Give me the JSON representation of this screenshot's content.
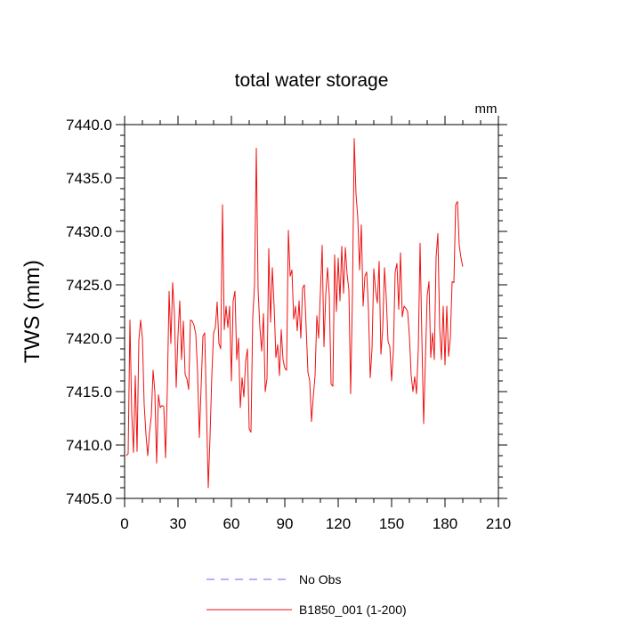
{
  "chart_data": {
    "type": "line",
    "title": "total water storage",
    "ylabel": "TWS  (mm)",
    "xlabel": "",
    "units_label": "mm",
    "xlim": [
      0,
      210
    ],
    "ylim": [
      7405.0,
      7440.0
    ],
    "x_ticks": [
      0,
      30,
      60,
      90,
      120,
      150,
      180,
      210
    ],
    "x_tick_labels": [
      "0",
      "30",
      "60",
      "90",
      "120",
      "150",
      "180",
      "210"
    ],
    "y_ticks": [
      7405.0,
      7410.0,
      7415.0,
      7420.0,
      7425.0,
      7430.0,
      7435.0,
      7440.0
    ],
    "y_tick_labels": [
      "7405.0",
      "7410.0",
      "7415.0",
      "7420.0",
      "7425.0",
      "7430.0",
      "7435.0",
      "7440.0"
    ],
    "series": [
      {
        "name": "No Obs",
        "color": "#6666ff",
        "dashed": true,
        "x": [],
        "values": []
      },
      {
        "name": "B1850_001 (1-200)",
        "color": "#ee1111",
        "dashed": false,
        "x_start": 1,
        "values": [
          7409.0,
          7409.2,
          7421.7,
          7413.0,
          7409.3,
          7416.5,
          7409.4,
          7419.8,
          7421.7,
          7420.0,
          7413.8,
          7411.0,
          7409.0,
          7411.2,
          7412.7,
          7417.0,
          7415.0,
          7408.3,
          7414.7,
          7413.5,
          7413.7,
          7413.6,
          7408.8,
          7415.2,
          7424.4,
          7419.5,
          7425.2,
          7422.3,
          7415.4,
          7420.3,
          7423.5,
          7418.0,
          7421.6,
          7416.6,
          7416.2,
          7415.2,
          7421.7,
          7421.6,
          7421.2,
          7420.4,
          7416.8,
          7410.7,
          7415.5,
          7420.2,
          7420.5,
          7413.4,
          7406.0,
          7410.8,
          7416.5,
          7420.5,
          7421.0,
          7423.4,
          7419.5,
          7419.0,
          7432.5,
          7420.8,
          7423.0,
          7421.0,
          7423.0,
          7416.0,
          7423.5,
          7424.4,
          7418.0,
          7420.0,
          7413.5,
          7416.3,
          7414.5,
          7417.8,
          7419.0,
          7411.5,
          7411.2,
          7422.0,
          7425.0,
          7437.8,
          7424.5,
          7421.0,
          7418.8,
          7422.3,
          7415.0,
          7416.2,
          7428.4,
          7421.5,
          7426.6,
          7423.0,
          7418.2,
          7419.4,
          7416.5,
          7420.8,
          7418.0,
          7417.2,
          7417.0,
          7430.1,
          7425.8,
          7426.4,
          7421.8,
          7423.0,
          7420.7,
          7423.5,
          7420.0,
          7424.7,
          7425.0,
          7421.0,
          7416.8,
          7416.0,
          7412.2,
          7414.5,
          7416.5,
          7422.1,
          7420.0,
          7424.3,
          7428.7,
          7419.2,
          7424.0,
          7426.6,
          7424.0,
          7415.7,
          7415.5,
          7427.8,
          7422.5,
          7427.5,
          7423.5,
          7428.6,
          7424.2,
          7428.5,
          7426.0,
          7424.5,
          7414.8,
          7424.0,
          7438.7,
          7433.5,
          7431.3,
          7426.4,
          7430.6,
          7423.0,
          7425.8,
          7426.2,
          7422.7,
          7416.3,
          7419.0,
          7426.5,
          7424.5,
          7423.3,
          7427.2,
          7418.5,
          7420.8,
          7426.6,
          7423.8,
          7419.7,
          7419.2,
          7416.0,
          7418.8,
          7426.2,
          7427.0,
          7422.7,
          7428.0,
          7422.0,
          7423.0,
          7422.8,
          7422.5,
          7420.2,
          7416.5,
          7415.0,
          7416.4,
          7414.8,
          7419.0,
          7428.9,
          7420.0,
          7412.0,
          7418.0,
          7424.0,
          7425.3,
          7418.2,
          7420.5,
          7418.0,
          7427.6,
          7429.8,
          7421.0,
          7418.0,
          7423.0,
          7417.5,
          7423.0,
          7418.3,
          7420.0,
          7425.3,
          7425.2,
          7432.5,
          7432.8,
          7428.7,
          7427.5,
          7426.7
        ]
      }
    ],
    "legend_position": "bottom-center"
  }
}
